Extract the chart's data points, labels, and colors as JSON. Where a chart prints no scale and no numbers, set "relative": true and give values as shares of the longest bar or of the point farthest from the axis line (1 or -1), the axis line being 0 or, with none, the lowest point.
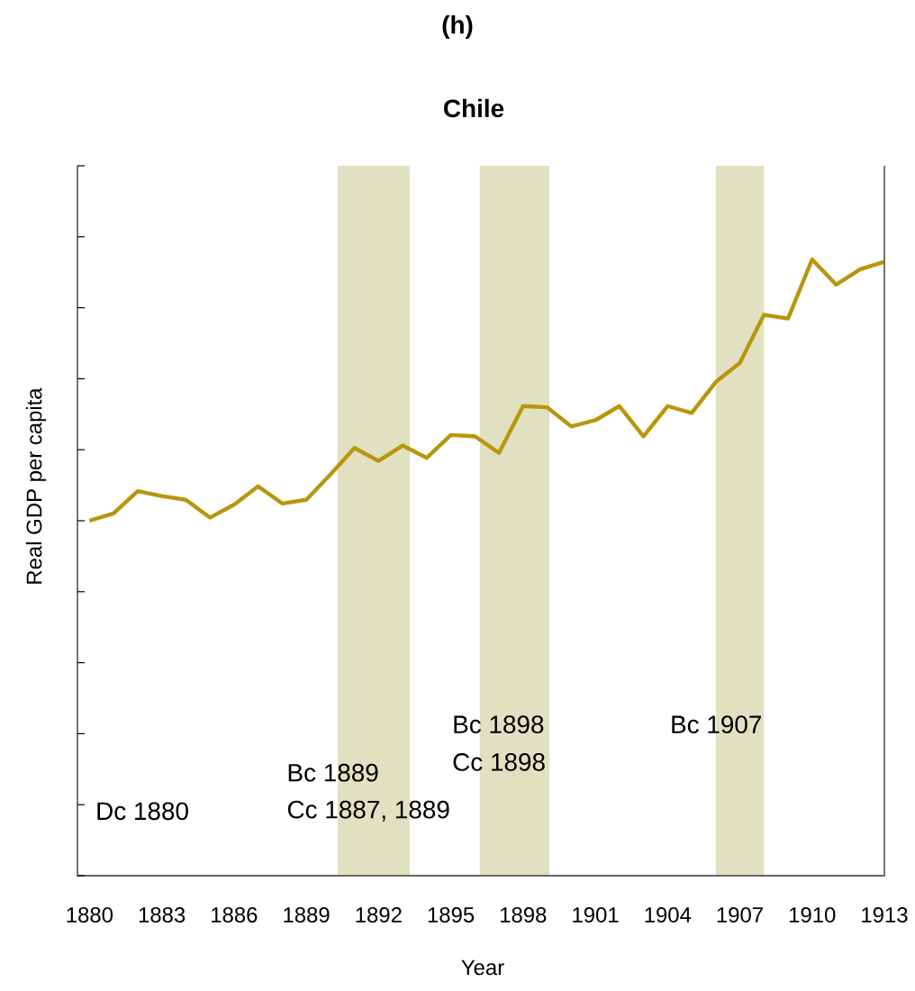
{
  "chart_data": {
    "type": "line",
    "title": "(h)",
    "subtitle": "Chile",
    "xlabel": "Year",
    "ylabel": "Real GDP per capita",
    "relative": true,
    "x": [
      1880,
      1881,
      1882,
      1883,
      1884,
      1885,
      1886,
      1887,
      1888,
      1889,
      1890,
      1891,
      1892,
      1893,
      1894,
      1895,
      1896,
      1897,
      1898,
      1899,
      1900,
      1901,
      1902,
      1903,
      1904,
      1905,
      1906,
      1907,
      1908,
      1909,
      1910,
      1911,
      1912,
      1913
    ],
    "series": [
      {
        "color": "#b8960c",
        "values": [
          0.576,
          0.588,
          0.624,
          0.616,
          0.61,
          0.581,
          0.602,
          0.632,
          0.604,
          0.61,
          0.651,
          0.694,
          0.673,
          0.698,
          0.678,
          0.715,
          0.713,
          0.686,
          0.762,
          0.76,
          0.729,
          0.739,
          0.762,
          0.713,
          0.762,
          0.751,
          0.801,
          0.832,
          0.91,
          0.904,
          1,
          0.959,
          0.984,
          0.996
        ]
      }
    ],
    "xlim": [
      1879.5,
      1913
    ],
    "xticks": [
      1880,
      1883,
      1886,
      1889,
      1892,
      1895,
      1898,
      1901,
      1904,
      1907,
      1910,
      1913
    ],
    "bands": [
      {
        "axis": "x",
        "from": 1890.3,
        "to": 1893.3,
        "color": "#e1e1c2"
      },
      {
        "axis": "x",
        "from": 1896.2,
        "to": 1899.1,
        "color": "#e1e1c2"
      },
      {
        "axis": "x",
        "from": 1906.0,
        "to": 1908.0,
        "color": "#e1e1c2"
      }
    ],
    "annotations": [
      "Dc 1880",
      "Bc 1889",
      "Cc 1887, 1889",
      "Bc 1898",
      "Cc 1898",
      "Bc 1907"
    ],
    "grid": false,
    "marker": "none",
    "line_style": "solid"
  }
}
